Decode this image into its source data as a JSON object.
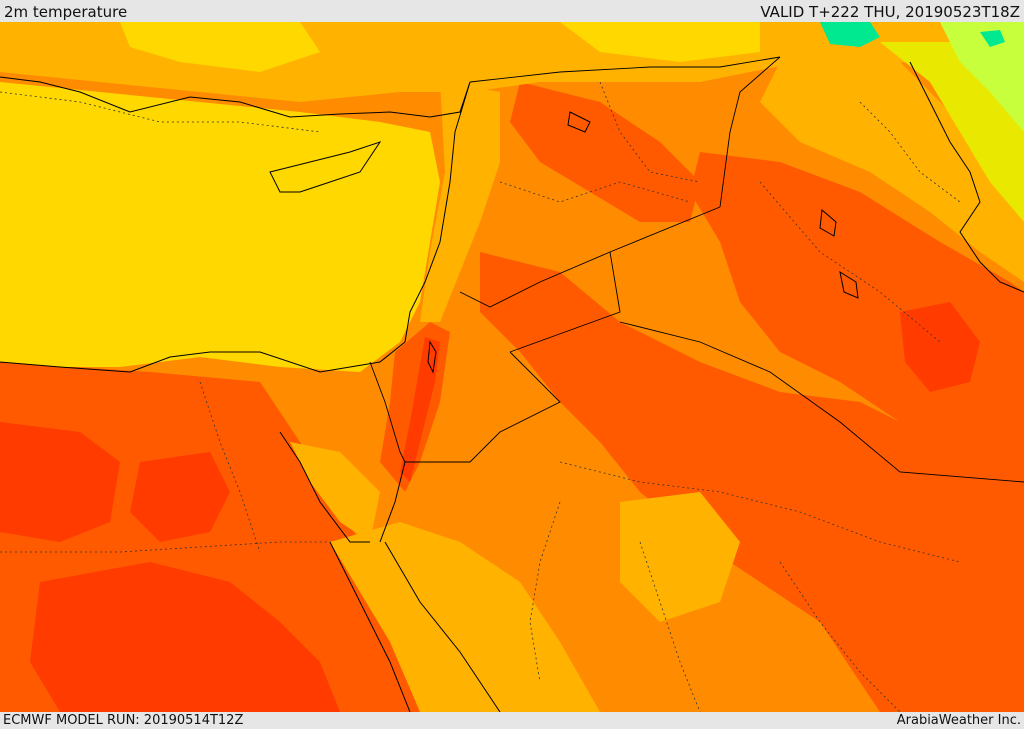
{
  "header": {
    "title": "2m temperature",
    "valid": "VALID T+222 THU, 20190523T18Z"
  },
  "footer": {
    "model_run": "ECMWF MODEL RUN: 20190514T12Z",
    "credit": "ArabiaWeather Inc."
  },
  "palette": {
    "background": "#e6e6e6",
    "very_hot": "#ff3b00",
    "hot": "#ff5a00",
    "warm": "#ff8c00",
    "mild": "#ffb300",
    "mild_sea": "#ffd800",
    "cool": "#e8e800",
    "cold": "#c8ff3c",
    "colder": "#00e890",
    "coast_line": "#000000"
  }
}
